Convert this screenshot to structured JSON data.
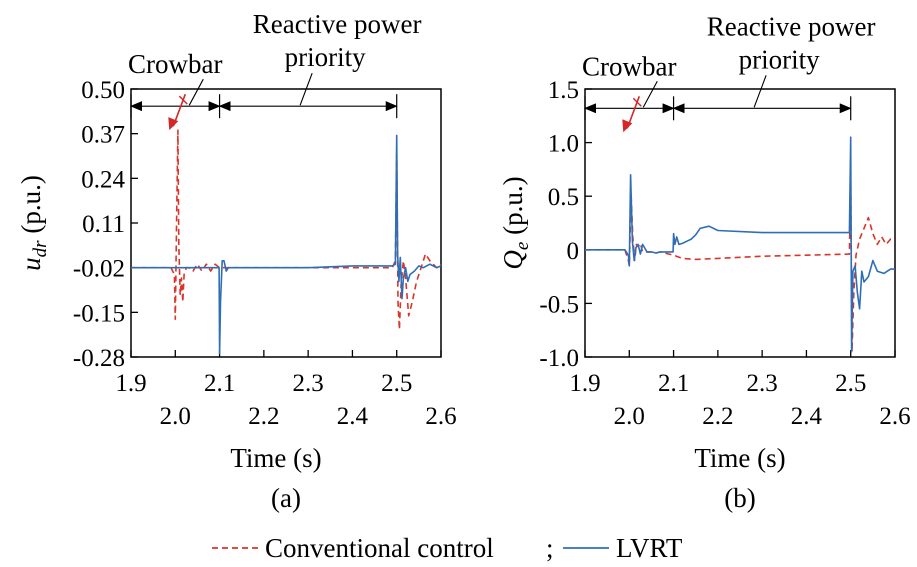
{
  "chart_data": [
    {
      "type": "line",
      "panel_label": "(a)",
      "ylabel_main": "u",
      "ylabel_sub": "dr",
      "ylabel_unit": " (p.u.)",
      "xlabel": "Time (s)",
      "xlim": [
        1.9,
        2.6
      ],
      "ylim": [
        -0.28,
        0.5
      ],
      "xticks": [
        {
          "value": 1.9,
          "label": "1.9",
          "row": 1
        },
        {
          "value": 2.0,
          "label": "2.0",
          "row": 2
        },
        {
          "value": 2.1,
          "label": "2.1",
          "row": 1
        },
        {
          "value": 2.2,
          "label": "2.2",
          "row": 2
        },
        {
          "value": 2.3,
          "label": "2.3",
          "row": 1
        },
        {
          "value": 2.4,
          "label": "2.4",
          "row": 2
        },
        {
          "value": 2.5,
          "label": "2.5",
          "row": 1
        },
        {
          "value": 2.6,
          "label": "2.6",
          "row": 2
        }
      ],
      "yticks": [
        {
          "value": 0.5,
          "label": "0.50"
        },
        {
          "value": 0.37,
          "label": "0.37"
        },
        {
          "value": 0.24,
          "label": "0.24"
        },
        {
          "value": 0.11,
          "label": "0.11"
        },
        {
          "value": -0.02,
          "label": "-0.02"
        },
        {
          "value": -0.15,
          "label": "-0.15"
        },
        {
          "value": -0.28,
          "label": "-0.28"
        }
      ],
      "annotations": {
        "crowbar": {
          "label": "Crowbar",
          "from": 1.9,
          "to": 2.1,
          "y": 0.45
        },
        "reactive": {
          "label_line1": "Reactive power",
          "label_line2": "priority",
          "from": 2.1,
          "to": 2.5,
          "y": 0.45
        }
      },
      "series": [
        {
          "name": "Conventional control",
          "color": "#d9352a",
          "dash": "6,4",
          "x": [
            1.9,
            1.99,
            1.998,
            2.0,
            2.003,
            2.006,
            2.008,
            2.011,
            2.014,
            2.017,
            2.02,
            2.025,
            2.03,
            2.04,
            2.05,
            2.06,
            2.07,
            2.08,
            2.09,
            2.1,
            2.11,
            2.15,
            2.2,
            2.3,
            2.4,
            2.49,
            2.497,
            2.5,
            2.503,
            2.506,
            2.51,
            2.515,
            2.52,
            2.527,
            2.535,
            2.545,
            2.555,
            2.565,
            2.575,
            2.59,
            2.6
          ],
          "y": [
            -0.02,
            -0.02,
            -0.04,
            -0.17,
            0.12,
            0.38,
            0.05,
            -0.1,
            -0.05,
            -0.12,
            -0.04,
            -0.02,
            -0.02,
            -0.03,
            -0.01,
            -0.03,
            -0.01,
            -0.03,
            -0.01,
            -0.02,
            -0.02,
            -0.02,
            -0.02,
            -0.02,
            -0.02,
            -0.02,
            0.0,
            0.31,
            -0.12,
            -0.2,
            -0.07,
            0.0,
            -0.05,
            -0.16,
            -0.12,
            -0.06,
            -0.02,
            0.02,
            0.0,
            -0.02,
            -0.01
          ]
        },
        {
          "name": "LVRT",
          "color": "#2f6eb5",
          "dash": "",
          "x": [
            1.9,
            2.0,
            2.05,
            2.09,
            2.099,
            2.1,
            2.102,
            2.106,
            2.11,
            2.115,
            2.12,
            2.13,
            2.2,
            2.3,
            2.4,
            2.49,
            2.497,
            2.5,
            2.502,
            2.505,
            2.508,
            2.512,
            2.515,
            2.52,
            2.525,
            2.53,
            2.54,
            2.55,
            2.56,
            2.575,
            2.59,
            2.6
          ],
          "y": [
            -0.02,
            -0.02,
            -0.02,
            -0.02,
            -0.02,
            -0.27,
            -0.12,
            0.0,
            0.0,
            -0.03,
            -0.02,
            -0.02,
            -0.02,
            -0.02,
            -0.015,
            -0.015,
            -0.01,
            0.365,
            0.02,
            -0.06,
            0.01,
            -0.11,
            -0.05,
            -0.02,
            -0.06,
            -0.04,
            -0.03,
            -0.015,
            -0.02,
            -0.01,
            -0.02,
            -0.015
          ]
        }
      ]
    },
    {
      "type": "line",
      "panel_label": "(b)",
      "ylabel_main": "Q",
      "ylabel_sub": "e",
      "ylabel_unit": " (p.u.)",
      "xlabel": "Time (s)",
      "xlim": [
        1.9,
        2.6
      ],
      "ylim": [
        -1.0,
        1.5
      ],
      "xticks": [
        {
          "value": 1.9,
          "label": "1.9",
          "row": 1
        },
        {
          "value": 2.0,
          "label": "2.0",
          "row": 2
        },
        {
          "value": 2.1,
          "label": "2.1",
          "row": 1
        },
        {
          "value": 2.2,
          "label": "2.2",
          "row": 2
        },
        {
          "value": 2.3,
          "label": "2.3",
          "row": 1
        },
        {
          "value": 2.4,
          "label": "2.4",
          "row": 2
        },
        {
          "value": 2.5,
          "label": "2.5",
          "row": 1
        },
        {
          "value": 2.6,
          "label": "2.6",
          "row": 2
        }
      ],
      "yticks": [
        {
          "value": 1.5,
          "label": "1.5"
        },
        {
          "value": 1.0,
          "label": "1.0"
        },
        {
          "value": 0.5,
          "label": "0.5"
        },
        {
          "value": 0.0,
          "label": "0"
        },
        {
          "value": -0.5,
          "label": "-0.5"
        },
        {
          "value": -1.0,
          "label": "-1.0"
        }
      ],
      "annotations": {
        "crowbar": {
          "label": "Crowbar",
          "from": 1.9,
          "to": 2.1,
          "y": 1.32
        },
        "reactive": {
          "label_line1": "Reactive power",
          "label_line2": "priority",
          "from": 2.1,
          "to": 2.5,
          "y": 1.32
        }
      },
      "series": [
        {
          "name": "Conventional control",
          "color": "#d9352a",
          "dash": "6,4",
          "x": [
            1.9,
            1.99,
            1.998,
            2.0,
            2.004,
            2.008,
            2.012,
            2.016,
            2.02,
            2.025,
            2.03,
            2.04,
            2.05,
            2.06,
            2.07,
            2.08,
            2.09,
            2.1,
            2.12,
            2.15,
            2.2,
            2.3,
            2.4,
            2.497,
            2.5,
            2.503,
            2.507,
            2.512,
            2.52,
            2.53,
            2.54,
            2.55,
            2.56,
            2.57,
            2.58,
            2.59,
            2.6
          ],
          "y": [
            0.0,
            0.0,
            -0.1,
            -0.15,
            0.52,
            0.12,
            -0.1,
            0.05,
            0.03,
            0.06,
            -0.02,
            -0.02,
            -0.02,
            -0.03,
            -0.02,
            -0.03,
            -0.04,
            -0.05,
            -0.08,
            -0.09,
            -0.08,
            -0.06,
            -0.05,
            -0.04,
            0.68,
            -0.95,
            -0.4,
            -0.05,
            0.1,
            0.2,
            0.3,
            0.15,
            0.05,
            0.12,
            0.05,
            0.1,
            0.1
          ]
        },
        {
          "name": "LVRT",
          "color": "#2f6eb5",
          "dash": "",
          "x": [
            1.9,
            1.99,
            1.998,
            2.0,
            2.003,
            2.007,
            2.011,
            2.015,
            2.02,
            2.025,
            2.03,
            2.04,
            2.05,
            2.06,
            2.07,
            2.08,
            2.09,
            2.099,
            2.1,
            2.103,
            2.107,
            2.112,
            2.12,
            2.13,
            2.14,
            2.15,
            2.16,
            2.18,
            2.2,
            2.3,
            2.4,
            2.497,
            2.5,
            2.502,
            2.505,
            2.51,
            2.515,
            2.52,
            2.525,
            2.53,
            2.54,
            2.55,
            2.56,
            2.575,
            2.59,
            2.6
          ],
          "y": [
            0.0,
            0.0,
            -0.05,
            -0.15,
            0.7,
            0.08,
            -0.1,
            0.02,
            0.05,
            -0.04,
            0.05,
            -0.02,
            -0.02,
            -0.03,
            -0.02,
            -0.02,
            -0.02,
            -0.02,
            0.15,
            0.05,
            0.12,
            0.05,
            0.06,
            0.08,
            0.1,
            0.14,
            0.2,
            0.22,
            0.18,
            0.16,
            0.16,
            0.16,
            1.05,
            -0.95,
            -0.2,
            -0.15,
            -0.4,
            -0.55,
            -0.2,
            -0.3,
            -0.25,
            -0.1,
            -0.2,
            -0.22,
            -0.18,
            -0.18
          ]
        }
      ]
    }
  ],
  "legend": {
    "placement": "bottom-center",
    "separator": ";",
    "items": [
      {
        "label": "Conventional control",
        "color": "#d9352a",
        "style": "dashed"
      },
      {
        "label": "LVRT",
        "color": "#2f6eb5",
        "style": "solid"
      }
    ]
  },
  "annotation_arrow_color": "#d62728"
}
